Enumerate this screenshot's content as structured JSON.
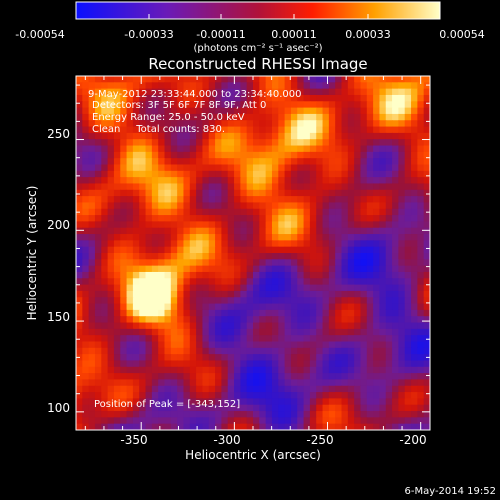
{
  "chart_data": {
    "type": "heatmap",
    "title": "Reconstructed RHESSI Image",
    "xlabel": "Heliocentric X (arcsec)",
    "ylabel": "Heliocentric Y (arcsec)",
    "xlim": [
      -385,
      -195
    ],
    "ylim": [
      90,
      285
    ],
    "x_ticks": [
      -350,
      -300,
      -250,
      -200
    ],
    "y_ticks": [
      100,
      150,
      200,
      250
    ],
    "colorbar": {
      "range": [
        -0.00054,
        0.00054
      ],
      "tick_labels": [
        "-0.00054",
        "-0.00033",
        "-0.00011",
        "0.00011",
        "0.00033",
        "0.00054"
      ],
      "units_label": "(photons cm⁻² s⁻¹ asec⁻²)"
    },
    "annotations": {
      "time_range": "9-May-2012 23:33:44.000 to 23:34:40.000",
      "detectors": "Detectors: 3F 5F 6F 7F 8F 9F, Att 0",
      "energy": "Energy Range: 25.0 - 50.0 keV",
      "clean": "Clean     Total counts: 830.",
      "peak": "Position of Peak = [-343,152]"
    },
    "footer_date": "6-May-2014 19:52"
  }
}
